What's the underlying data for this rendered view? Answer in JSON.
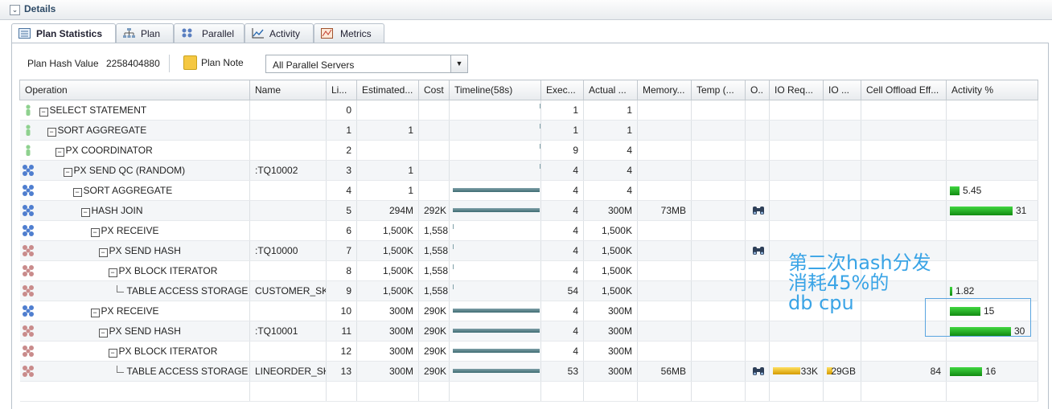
{
  "header": {
    "title": "Details"
  },
  "tabs": [
    {
      "label": "Plan Statistics",
      "icon": "table-icon",
      "active": true
    },
    {
      "label": "Plan",
      "icon": "tree-icon"
    },
    {
      "label": "Parallel",
      "icon": "parallel-icon"
    },
    {
      "label": "Activity",
      "icon": "chart-icon"
    },
    {
      "label": "Metrics",
      "icon": "metrics-icon"
    }
  ],
  "toolbar": {
    "plan_hash_label": "Plan Hash Value",
    "plan_hash_value": "2258404880",
    "plan_note_label": "Plan Note",
    "server_select": "All Parallel Servers"
  },
  "columns": [
    "Operation",
    "Name",
    "Li...",
    "Estimated...",
    "Cost",
    "Timeline(58s)",
    "Exec...",
    "Actual ...",
    "Memory...",
    "Temp (...",
    "O..",
    "IO Req...",
    "IO ...",
    "Cell Offload Eff...",
    "Activity %"
  ],
  "rows": [
    {
      "op": "SELECT STATEMENT",
      "name": "",
      "line": "0",
      "est": "",
      "cost": "",
      "exec": "1",
      "actual": "1",
      "mem": "",
      "temp": "",
      "eff": "",
      "activity": ""
    },
    {
      "op": "SORT AGGREGATE",
      "name": "",
      "line": "1",
      "est": "1",
      "cost": "",
      "exec": "1",
      "actual": "1",
      "mem": "",
      "temp": "",
      "eff": "",
      "activity": ""
    },
    {
      "op": "PX COORDINATOR",
      "name": "",
      "line": "2",
      "est": "",
      "cost": "",
      "exec": "9",
      "actual": "4",
      "mem": "",
      "temp": "",
      "eff": "",
      "activity": ""
    },
    {
      "op": "PX SEND QC (RANDOM)",
      "name": ":TQ10002",
      "line": "3",
      "est": "1",
      "cost": "",
      "exec": "4",
      "actual": "4",
      "mem": "",
      "temp": "",
      "eff": "",
      "activity": ""
    },
    {
      "op": "SORT AGGREGATE",
      "name": "",
      "line": "4",
      "est": "1",
      "cost": "",
      "exec": "4",
      "actual": "4",
      "mem": "",
      "temp": "",
      "eff": "",
      "activity": "5.45"
    },
    {
      "op": "HASH JOIN",
      "name": "",
      "line": "5",
      "est": "294M",
      "cost": "292K",
      "exec": "4",
      "actual": "300M",
      "mem": "73MB",
      "temp": "",
      "eff": "",
      "activity": "31"
    },
    {
      "op": "PX RECEIVE",
      "name": "",
      "line": "6",
      "est": "1,500K",
      "cost": "1,558",
      "exec": "4",
      "actual": "1,500K",
      "mem": "",
      "temp": "",
      "eff": "",
      "activity": ""
    },
    {
      "op": "PX SEND HASH",
      "name": ":TQ10000",
      "line": "7",
      "est": "1,500K",
      "cost": "1,558",
      "exec": "4",
      "actual": "1,500K",
      "mem": "",
      "temp": "",
      "eff": "",
      "activity": ""
    },
    {
      "op": "PX BLOCK ITERATOR",
      "name": "",
      "line": "8",
      "est": "1,500K",
      "cost": "1,558",
      "exec": "4",
      "actual": "1,500K",
      "mem": "",
      "temp": "",
      "eff": "",
      "activity": ""
    },
    {
      "op": "TABLE ACCESS STORAGE ...",
      "name": "CUSTOMER_SKE",
      "line": "9",
      "est": "1,500K",
      "cost": "1,558",
      "exec": "54",
      "actual": "1,500K",
      "mem": "",
      "temp": "",
      "eff": "",
      "activity": "1.82"
    },
    {
      "op": "PX RECEIVE",
      "name": "",
      "line": "10",
      "est": "300M",
      "cost": "290K",
      "exec": "4",
      "actual": "300M",
      "mem": "",
      "temp": "",
      "eff": "",
      "activity": "15"
    },
    {
      "op": "PX SEND HASH",
      "name": ":TQ10001",
      "line": "11",
      "est": "300M",
      "cost": "290K",
      "exec": "4",
      "actual": "300M",
      "mem": "",
      "temp": "",
      "eff": "",
      "activity": "30"
    },
    {
      "op": "PX BLOCK ITERATOR",
      "name": "",
      "line": "12",
      "est": "300M",
      "cost": "290K",
      "exec": "4",
      "actual": "300M",
      "mem": "",
      "temp": "",
      "eff": "",
      "activity": ""
    },
    {
      "op": "TABLE ACCESS STORAGE ...",
      "name": "LINEORDER_SKI",
      "line": "13",
      "est": "300M",
      "cost": "290K",
      "exec": "53",
      "actual": "300M",
      "mem": "56MB",
      "temp": "",
      "eff": "84",
      "activity": "16",
      "io_req": "33K",
      "io_bytes": "29GB"
    }
  ],
  "annotation": {
    "line1": "第二次hash分发",
    "line2": "消耗45%的",
    "line3": "db cpu"
  },
  "colors": {
    "accent": "#3aa4e6",
    "activity_bar": "#1ea81e",
    "io_bar": "#e6b20f",
    "timeline_bar": "#4f7a80"
  }
}
